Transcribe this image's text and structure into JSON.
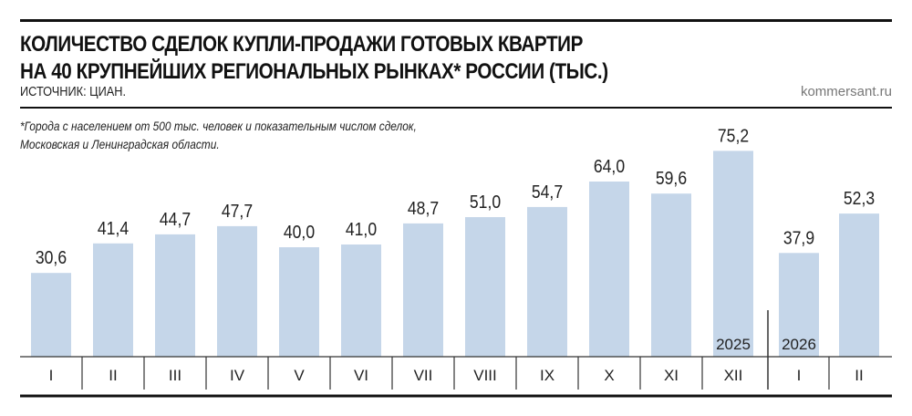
{
  "header": {
    "title_line1": "КОЛИЧЕСТВО СДЕЛОК КУПЛИ-ПРОДАЖИ ГОТОВЫХ КВАРТИР",
    "title_line2": "НА 40 КРУПНЕЙШИХ РЕГИОНАЛЬНЫХ РЫНКАХ* РОССИИ (ТЫС.)",
    "source": "ИСТОЧНИК: ЦИАН.",
    "site": "kommersant.ru",
    "footnote_line1": "*Города с населением от 500 тыс. человек и показательным числом сделок,",
    "footnote_line2": " Московская и Ленинградская области."
  },
  "chart_data": {
    "type": "bar",
    "title": "КОЛИЧЕСТВО СДЕЛОК КУПЛИ-ПРОДАЖИ ГОТОВЫХ КВАРТИР НА 40 КРУПНЕЙШИХ РЕГИОНАЛЬНЫХ РЫНКАХ* РОССИИ (ТЫС.)",
    "categories": [
      "I",
      "II",
      "III",
      "IV",
      "V",
      "VI",
      "VII",
      "VIII",
      "IX",
      "X",
      "XI",
      "XII",
      "I",
      "II"
    ],
    "values": [
      30.6,
      41.4,
      44.7,
      47.7,
      40.0,
      41.0,
      48.7,
      51.0,
      54.7,
      64.0,
      59.6,
      75.2,
      37.9,
      52.3
    ],
    "data_labels": [
      "30,6",
      "41,4",
      "44,7",
      "47,7",
      "40,0",
      "41,0",
      "48,7",
      "51,0",
      "54,7",
      "64,0",
      "59,6",
      "75,2",
      "37,9",
      "52,3"
    ],
    "year_labels": [
      {
        "label": "2025",
        "category_index": 11
      },
      {
        "label": "2026",
        "category_index": 12
      }
    ],
    "ylim": [
      0,
      80
    ],
    "grid": false,
    "bar_color": "#c5d6e9"
  }
}
